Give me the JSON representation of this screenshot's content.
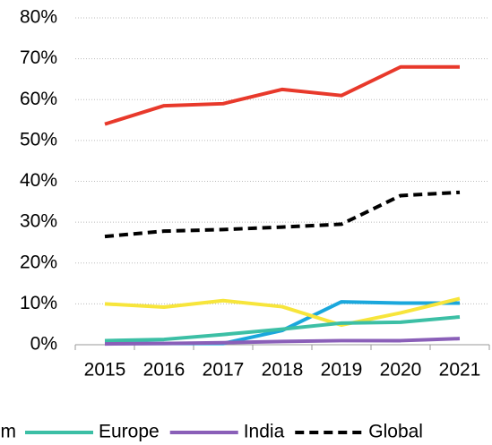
{
  "chart_data": {
    "type": "line",
    "categories": [
      "2015",
      "2016",
      "2017",
      "2018",
      "2019",
      "2020",
      "2021"
    ],
    "series": [
      {
        "color": "#e8392b",
        "values": [
          54,
          58.5,
          59,
          62.5,
          61,
          68,
          68
        ]
      },
      {
        "color": "#1aa7dc",
        "values": [
          0.3,
          0.3,
          0.3,
          3.5,
          10.5,
          10.2,
          10.2
        ]
      },
      {
        "name": "m",
        "color": "#f7e53b",
        "values": [
          10,
          9.2,
          10.8,
          9.3,
          4.8,
          7.8,
          11.3
        ]
      },
      {
        "name": "Europe",
        "color": "#3cbfa5",
        "values": [
          1,
          1.3,
          2.5,
          3.8,
          5.3,
          5.5,
          6.8
        ]
      },
      {
        "name": "India",
        "color": "#8a5fb8",
        "values": [
          0.2,
          0.3,
          0.5,
          0.8,
          1,
          1,
          1.5
        ]
      },
      {
        "name": "Global",
        "color": "#000000",
        "dashed": true,
        "values": [
          26.5,
          27.8,
          28.2,
          28.8,
          29.5,
          36.5,
          37.3
        ]
      }
    ],
    "ylim": [
      0,
      80
    ],
    "yticks": [
      {
        "value": 0,
        "label": "0%"
      },
      {
        "value": 10,
        "label": "10%"
      },
      {
        "value": 20,
        "label": "20%"
      },
      {
        "value": 30,
        "label": "30%"
      },
      {
        "value": 40,
        "label": "40%"
      },
      {
        "value": 50,
        "label": "50%"
      },
      {
        "value": 60,
        "label": "60%"
      },
      {
        "value": 70,
        "label": "70%"
      },
      {
        "value": 80,
        "label": "80%"
      }
    ],
    "grid": true
  }
}
